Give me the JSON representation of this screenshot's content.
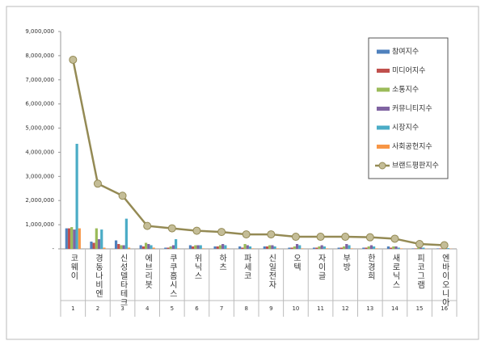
{
  "chart_data": {
    "type": "bar_line",
    "categories": [
      "코웨이",
      "경동나비엔",
      "신성델타테크",
      "에브리봇",
      "쿠쿠홈시스",
      "위닉스",
      "하츠",
      "파세코",
      "신일전자",
      "오텍",
      "자이글",
      "부방",
      "한경희",
      "새로닉스",
      "피코그램",
      "엔바이오니아"
    ],
    "ranks": [
      1,
      2,
      3,
      4,
      5,
      6,
      7,
      8,
      9,
      10,
      11,
      12,
      13,
      14,
      15,
      16
    ],
    "series": [
      {
        "name": "참여지수",
        "color": "#4f81bd",
        "values": [
          850000,
          300000,
          350000,
          150000,
          50000,
          150000,
          100000,
          100000,
          100000,
          50000,
          50000,
          50000,
          50000,
          100000,
          20000,
          20000
        ]
      },
      {
        "name": "미디어지수",
        "color": "#c0504d",
        "values": [
          850000,
          250000,
          200000,
          100000,
          50000,
          100000,
          100000,
          50000,
          100000,
          50000,
          50000,
          50000,
          50000,
          50000,
          20000,
          20000
        ]
      },
      {
        "name": "소통지수",
        "color": "#9bbb59",
        "values": [
          900000,
          850000,
          150000,
          250000,
          100000,
          150000,
          150000,
          200000,
          150000,
          100000,
          100000,
          100000,
          100000,
          100000,
          50000,
          30000
        ]
      },
      {
        "name": "커뮤니티지수",
        "color": "#8064a2",
        "values": [
          800000,
          400000,
          150000,
          200000,
          150000,
          150000,
          200000,
          150000,
          150000,
          200000,
          150000,
          200000,
          150000,
          100000,
          50000,
          40000
        ]
      },
      {
        "name": "시장지수",
        "color": "#4bacc6",
        "values": [
          4350000,
          800000,
          1250000,
          150000,
          400000,
          150000,
          150000,
          100000,
          100000,
          150000,
          100000,
          150000,
          100000,
          50000,
          50000,
          30000
        ]
      },
      {
        "name": "사회공헌지수",
        "color": "#f79646",
        "values": [
          850000,
          50000,
          50000,
          50000,
          20000,
          20000,
          20000,
          20000,
          20000,
          20000,
          20000,
          20000,
          20000,
          20000,
          10000,
          10000
        ]
      },
      {
        "name": "브랜드평판지수",
        "color": "#948a54",
        "kind": "line",
        "values": [
          7830000,
          2700000,
          2200000,
          950000,
          850000,
          750000,
          700000,
          600000,
          600000,
          500000,
          500000,
          500000,
          480000,
          420000,
          200000,
          150000
        ]
      }
    ],
    "ylim": [
      0,
      9000000
    ],
    "yticks": [
      {
        "value": 0,
        "label": "-"
      },
      {
        "value": 1000000,
        "label": "1,000,000"
      },
      {
        "value": 2000000,
        "label": "2,000,000"
      },
      {
        "value": 3000000,
        "label": "3,000,000"
      },
      {
        "value": 4000000,
        "label": "4,000,000"
      },
      {
        "value": 5000000,
        "label": "5,000,000"
      },
      {
        "value": 6000000,
        "label": "6,000,000"
      },
      {
        "value": 7000000,
        "label": "7,000,000"
      },
      {
        "value": 8000000,
        "label": "8,000,000"
      },
      {
        "value": 9000000,
        "label": "9,000,000"
      }
    ]
  }
}
